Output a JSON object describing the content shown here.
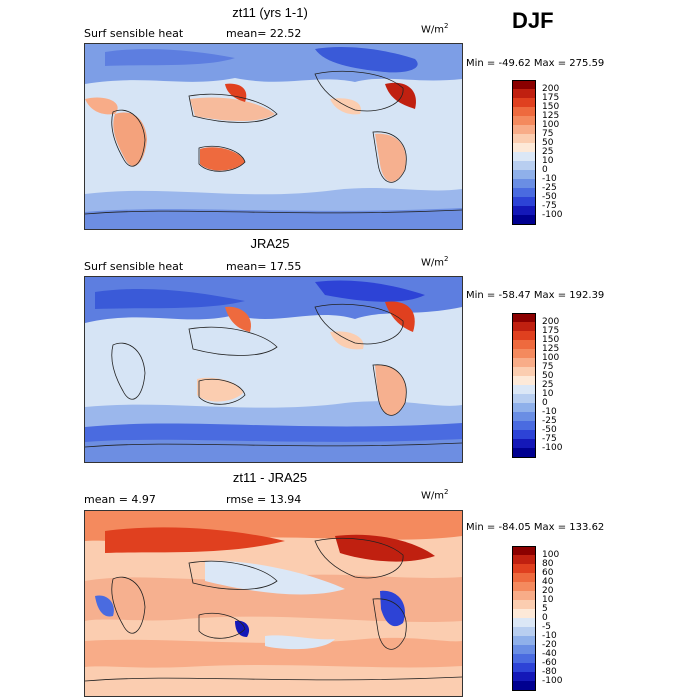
{
  "season": "DJF",
  "units_base": "W/m",
  "units_exp": "2",
  "panels": [
    {
      "title": "zt11 (yrs 1-1)",
      "left_label": "Surf sensible heat",
      "mid_label": "mean=  22.52",
      "minmax": "Min = -49.62 Max = 275.59",
      "colorbar_labels": [
        "200",
        "175",
        "150",
        "125",
        "100",
        "75",
        "50",
        "25",
        "10",
        "0",
        "-10",
        "-25",
        "-50",
        "-75",
        "-100"
      ],
      "colorbar_colors": [
        "#8b0000",
        "#c02010",
        "#e0401f",
        "#ee6a3e",
        "#f48a5e",
        "#f8ac88",
        "#fbcdb0",
        "#fde9d8",
        "#dbe7f6",
        "#b8cef0",
        "#8fb0ea",
        "#6a8ee4",
        "#4a6be0",
        "#2d43d6",
        "#1418b8",
        "#000090"
      ]
    },
    {
      "title": "JRA25",
      "left_label": "Surf sensible heat",
      "mid_label": "mean=  17.55",
      "minmax": "Min = -58.47 Max = 192.39",
      "colorbar_labels": [
        "200",
        "175",
        "150",
        "125",
        "100",
        "75",
        "50",
        "25",
        "10",
        "0",
        "-10",
        "-25",
        "-50",
        "-75",
        "-100"
      ],
      "colorbar_colors": [
        "#8b0000",
        "#c02010",
        "#e0401f",
        "#ee6a3e",
        "#f48a5e",
        "#f8ac88",
        "#fbcdb0",
        "#fde9d8",
        "#dbe7f6",
        "#b8cef0",
        "#8fb0ea",
        "#6a8ee4",
        "#4a6be0",
        "#2d43d6",
        "#1418b8",
        "#000090"
      ]
    },
    {
      "title": "zt11 - JRA25",
      "left_label": "mean =    4.97",
      "mid_label": "rmse =   13.94",
      "minmax": "Min = -84.05 Max = 133.62",
      "colorbar_labels": [
        "100",
        "80",
        "60",
        "40",
        "20",
        "10",
        "5",
        "0",
        "-5",
        "-10",
        "-20",
        "-40",
        "-60",
        "-80",
        "-100"
      ],
      "colorbar_colors": [
        "#8b0000",
        "#c02010",
        "#e0401f",
        "#ee6a3e",
        "#f48a5e",
        "#f8ac88",
        "#fbcdb0",
        "#fde9d8",
        "#dbe7f6",
        "#b8cef0",
        "#8fb0ea",
        "#6a8ee4",
        "#4a6be0",
        "#2d43d6",
        "#1418b8",
        "#000090"
      ]
    }
  ]
}
